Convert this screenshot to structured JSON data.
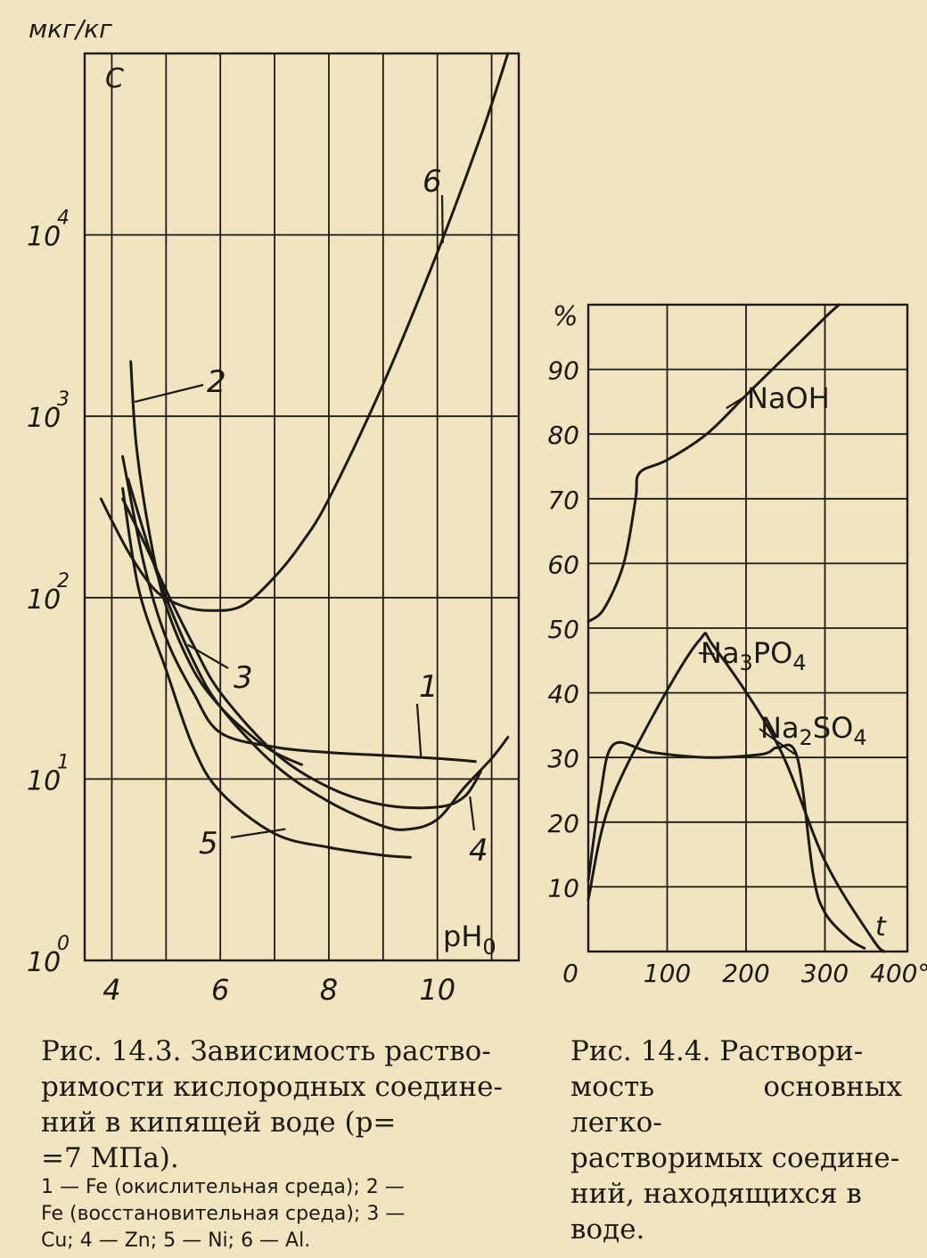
{
  "chart_data": [
    {
      "type": "line",
      "y_scale": "log",
      "units_label": "мкг/кг",
      "ylabel": "C",
      "xlabel": "pH₀",
      "xlim": [
        3.5,
        11.5
      ],
      "ylim": [
        1,
        100000
      ],
      "x_ticks": [
        "4",
        "6",
        "8",
        "10"
      ],
      "y_ticks": [
        {
          "base": "10",
          "exp": "0"
        },
        {
          "base": "10",
          "exp": "1"
        },
        {
          "base": "10",
          "exp": "2"
        },
        {
          "base": "10",
          "exp": "3"
        },
        {
          "base": "10",
          "exp": "4"
        }
      ],
      "series": [
        {
          "name": "1",
          "x": [
            4.2,
            4.6,
            5.0,
            5.5,
            6.0,
            7.0,
            8.0,
            9.0,
            10.0,
            10.7
          ],
          "y": [
            600,
            150,
            60,
            30,
            18,
            15,
            14,
            13.5,
            13,
            12.5
          ]
        },
        {
          "name": "2",
          "x": [
            4.35,
            4.45,
            4.7,
            5.0,
            5.5,
            6.0,
            6.5,
            7.0,
            7.5
          ],
          "y": [
            2000,
            700,
            220,
            90,
            40,
            25,
            18,
            14,
            12
          ]
        },
        {
          "name": "3",
          "x": [
            4.2,
            4.6,
            5.0,
            5.5,
            6.0,
            7.0,
            8.0,
            9.0,
            10.0,
            10.5,
            10.8
          ],
          "y": [
            350,
            200,
            110,
            55,
            30,
            14,
            9,
            7.2,
            7,
            8,
            11
          ]
        },
        {
          "name": "4",
          "x": [
            4.3,
            4.7,
            5.0,
            5.5,
            6.0,
            7.0,
            8.0,
            9.0,
            9.5,
            10.0,
            10.5,
            11.0,
            11.3
          ],
          "y": [
            450,
            180,
            100,
            45,
            25,
            12,
            7.5,
            5.5,
            5.3,
            6,
            9,
            13,
            17
          ]
        },
        {
          "name": "5",
          "x": [
            4.2,
            4.5,
            5.0,
            5.5,
            6.0,
            7.0,
            8.0,
            9.0,
            9.5
          ],
          "y": [
            400,
            110,
            40,
            15,
            8.5,
            5,
            4.2,
            3.8,
            3.7
          ]
        },
        {
          "name": "6",
          "x": [
            3.8,
            4.3,
            4.8,
            5.3,
            5.8,
            6.4,
            7.0,
            7.5,
            8.0,
            9.0,
            10.0,
            10.8,
            11.3
          ],
          "y": [
            350,
            180,
            110,
            90,
            85,
            90,
            130,
            200,
            350,
            1500,
            8000,
            35000,
            100000
          ]
        }
      ],
      "curve_labels": [
        "1",
        "2",
        "3",
        "4",
        "5",
        "6"
      ]
    },
    {
      "type": "line",
      "ylabel": "%",
      "xlabel": "t",
      "xlim": [
        0,
        400
      ],
      "ylim": [
        0,
        100
      ],
      "x_ticks": [
        "0",
        "100",
        "200",
        "300",
        "400°C"
      ],
      "y_ticks": [
        "10",
        "20",
        "30",
        "40",
        "50",
        "60",
        "70",
        "80",
        "90"
      ],
      "series": [
        {
          "name": "NaOH",
          "x": [
            0,
            20,
            45,
            60,
            65,
            100,
            150,
            200,
            250,
            300,
            318
          ],
          "y": [
            51,
            53,
            60,
            70,
            74,
            76,
            80,
            86,
            92,
            98,
            100
          ]
        },
        {
          "name": "Na₃PO₄",
          "x": [
            0,
            25,
            80,
            140,
            160,
            240,
            300,
            360,
            375
          ],
          "y": [
            8,
            22,
            36,
            48,
            47,
            32,
            14,
            2,
            0
          ]
        },
        {
          "name": "Na₂SO₄",
          "x": [
            0,
            15,
            32,
            80,
            150,
            220,
            240,
            265,
            285,
            300,
            330,
            350
          ],
          "y": [
            11,
            24,
            32,
            30.8,
            30,
            30.5,
            31.5,
            30,
            12,
            6,
            2,
            0.5
          ]
        }
      ]
    }
  ],
  "captions": {
    "left": {
      "line1": "Рис. 14.3. Зависимость раство-",
      "line2": "римости кислородных соедине-",
      "line3": "ний в кипящей воде (p=",
      "line4": "=7 МПа).",
      "legend1": "1 — Fe (окислительная среда); 2 —",
      "legend2": "Fe (восстановительная среда); 3 —",
      "legend3": "Cu; 4 — Zn; 5 — Ni; 6 — Al."
    },
    "right": {
      "line1": "Рис. 14.4. Раствори-",
      "line2": "мость основных легко-",
      "line3": "растворимых соедине-",
      "line4": "ний, находящихся в",
      "line5": "воде."
    }
  },
  "colors": {
    "paper": "#f1e5bf",
    "ink": "#1c1a16"
  }
}
